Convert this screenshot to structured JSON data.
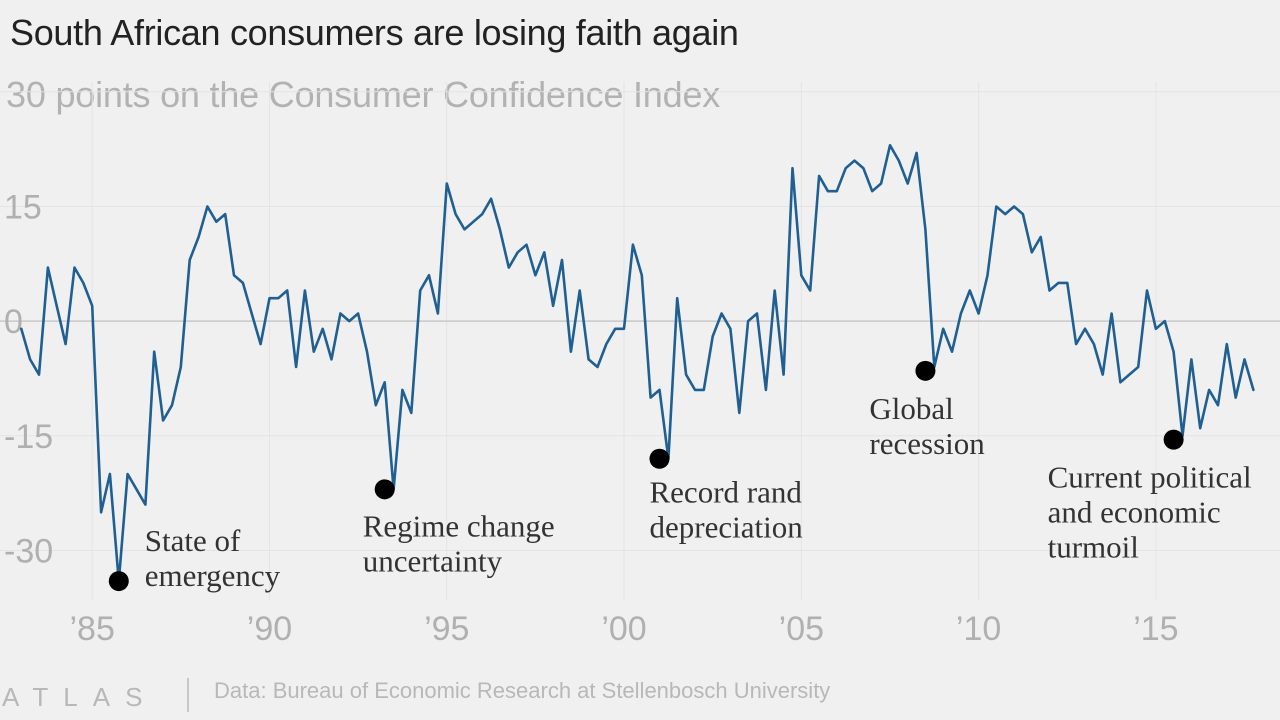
{
  "header": {
    "title": "South African consumers are losing faith again",
    "subtitle": "30 points on the Consumer Confidence Index"
  },
  "footer": {
    "brand": "ATLAS",
    "source": "Data: Bureau of Economic Research at Stellenbosch University"
  },
  "colors": {
    "line": "#1f5f91",
    "marker": "#000000",
    "zero_line": "#c8c8c8",
    "grid": "#e4e4e4",
    "background": "#f0f0f0"
  },
  "chart_data": {
    "type": "line",
    "title": "South African consumers are losing faith again",
    "subtitle": "30 points on the Consumer Confidence Index",
    "xlabel": "",
    "ylabel": "",
    "xlim": [
      1982.4,
      2018.5
    ],
    "ylim": [
      -37,
      25
    ],
    "grid": true,
    "y_ticks": [
      15,
      0,
      -15,
      -30
    ],
    "y_tick_labels": [
      "15",
      "0",
      "-15",
      "-30"
    ],
    "x_ticks": [
      1985,
      1990,
      1995,
      2000,
      2005,
      2010,
      2015
    ],
    "x_tick_labels": [
      "’85",
      "’90",
      "’95",
      "’00",
      "’05",
      "’10",
      "’15"
    ],
    "series": [
      {
        "x": [
          1983.0,
          1983.25,
          1983.5,
          1983.75,
          1984.0,
          1984.25,
          1984.5,
          1984.75,
          1985.0,
          1985.25,
          1985.5,
          1985.75,
          1986.0,
          1986.25,
          1986.5,
          1986.75,
          1987.0,
          1987.25,
          1987.5,
          1987.75,
          1988.0,
          1988.25,
          1988.5,
          1988.75,
          1989.0,
          1989.25,
          1989.5,
          1989.75,
          1990.0,
          1990.25,
          1990.5,
          1990.75,
          1991.0,
          1991.25,
          1991.5,
          1991.75,
          1992.0,
          1992.25,
          1992.5,
          1992.75,
          1993.0,
          1993.25,
          1993.5,
          1993.75,
          1994.0,
          1994.25,
          1994.5,
          1994.75,
          1995.0,
          1995.25,
          1995.5,
          1995.75,
          1996.0,
          1996.25,
          1996.5,
          1996.75,
          1997.0,
          1997.25,
          1997.5,
          1997.75,
          1998.0,
          1998.25,
          1998.5,
          1998.75,
          1999.0,
          1999.25,
          1999.5,
          1999.75,
          2000.0,
          2000.25,
          2000.5,
          2000.75,
          2001.0,
          2001.25,
          2001.5,
          2001.75,
          2002.0,
          2002.25,
          2002.5,
          2002.75,
          2003.0,
          2003.25,
          2003.5,
          2003.75,
          2004.0,
          2004.25,
          2004.5,
          2004.75,
          2005.0,
          2005.25,
          2005.5,
          2005.75,
          2006.0,
          2006.25,
          2006.5,
          2006.75,
          2007.0,
          2007.25,
          2007.5,
          2007.75,
          2008.0,
          2008.25,
          2008.5,
          2008.75,
          2009.0,
          2009.25,
          2009.5,
          2009.75,
          2010.0,
          2010.25,
          2010.5,
          2010.75,
          2011.0,
          2011.25,
          2011.5,
          2011.75,
          2012.0,
          2012.25,
          2012.5,
          2012.75,
          2013.0,
          2013.25,
          2013.5,
          2013.75,
          2014.0,
          2014.25,
          2014.5,
          2014.75,
          2015.0,
          2015.25,
          2015.5,
          2015.75,
          2016.0,
          2016.25,
          2016.5,
          2016.75,
          2017.0,
          2017.25,
          2017.5,
          2017.75
        ],
        "values": [
          -1,
          -5,
          -7,
          7,
          2,
          -3,
          7,
          5,
          2,
          -25,
          -20,
          -34,
          -20,
          -22,
          -24,
          -4,
          -13,
          -11,
          -6,
          8,
          11,
          15,
          13,
          14,
          6,
          5,
          1,
          -3,
          3,
          3,
          4,
          -6,
          4,
          -4,
          -1,
          -5,
          1,
          0,
          1,
          -4,
          -11,
          -8,
          -22,
          -9,
          -12,
          4,
          6,
          1,
          18,
          14,
          12,
          13,
          14,
          16,
          12,
          7,
          9,
          10,
          6,
          9,
          2,
          8,
          -4,
          4,
          -5,
          -6,
          -3,
          -1,
          -1,
          10,
          6,
          -10,
          -9,
          -18,
          3,
          -7,
          -9,
          -9,
          -2,
          1,
          -1,
          -12,
          0,
          1,
          -9,
          4,
          -7,
          20,
          6,
          4,
          19,
          17,
          17,
          20,
          21,
          20,
          17,
          18,
          23,
          21,
          18,
          22,
          12,
          -6,
          -1,
          -4,
          1,
          4,
          1,
          6,
          15,
          14,
          15,
          14,
          9,
          11,
          4,
          5,
          5,
          -3,
          -1,
          -3,
          -7,
          1,
          -8,
          -7,
          -6,
          4,
          -1,
          0,
          -4,
          -15,
          -5,
          -14,
          -9,
          -11,
          -3,
          -10,
          -5,
          -9
        ]
      }
    ],
    "annotations": [
      {
        "x": 1985.75,
        "y": -34,
        "label_lines": [
          "State of",
          "emergency"
        ]
      },
      {
        "x": 1993.25,
        "y": -22,
        "label_lines": [
          "Regime change",
          "uncertainty"
        ]
      },
      {
        "x": 2001.0,
        "y": -18,
        "label_lines": [
          "Record rand",
          "depreciation"
        ]
      },
      {
        "x": 2008.5,
        "y": -6.5,
        "label_lines": [
          "Global",
          "recession"
        ]
      },
      {
        "x": 2015.5,
        "y": -15.5,
        "label_lines": [
          "Current political",
          "and economic",
          "turmoil"
        ]
      }
    ]
  }
}
